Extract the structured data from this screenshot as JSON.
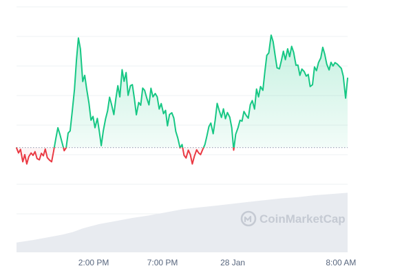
{
  "chart_data": {
    "type": "line",
    "title": "",
    "xlabel": "",
    "ylabel": "",
    "x_tick_labels": [
      "2:00 PM",
      "7:00 PM",
      "28 Jan",
      "8:00 AM"
    ],
    "x_range": [
      0,
      100
    ],
    "x_tick_positions": [
      23.3,
      44.1,
      65.3,
      98.0
    ],
    "ylim": [
      0,
      100
    ],
    "grid": "horizontal",
    "legend": "none",
    "baseline_value": 31.4,
    "colors": {
      "up": "#16c784",
      "down": "#ea3943",
      "up_fill": "#16c784",
      "down_fill": "#ea3943",
      "baseline": "#a1a7bb",
      "volume": "#e8ebf0",
      "grid": "#eef0f3"
    },
    "series": [
      {
        "values": [
          [
            0,
            31.2
          ],
          [
            0.6,
            28.5
          ],
          [
            1.2,
            30.4
          ],
          [
            1.9,
            23.8
          ],
          [
            2.5,
            27.6
          ],
          [
            3.1,
            22.6
          ],
          [
            3.7,
            26.5
          ],
          [
            4.4,
            28.5
          ],
          [
            5.0,
            27.2
          ],
          [
            5.6,
            29.2
          ],
          [
            6.2,
            25.5
          ],
          [
            6.9,
            24.8
          ],
          [
            7.5,
            28.3
          ],
          [
            8.1,
            27.0
          ],
          [
            8.7,
            30.6
          ],
          [
            9.3,
            26.0
          ],
          [
            10.0,
            24.6
          ],
          [
            10.6,
            23.8
          ],
          [
            11.2,
            29.4
          ],
          [
            11.9,
            36.4
          ],
          [
            12.5,
            42.0
          ],
          [
            13.1,
            38.5
          ],
          [
            13.7,
            34.4
          ],
          [
            14.4,
            29.7
          ],
          [
            15.0,
            31.3
          ],
          [
            15.6,
            39.2
          ],
          [
            16.2,
            40.3
          ],
          [
            16.9,
            52.0
          ],
          [
            17.5,
            62.5
          ],
          [
            18.1,
            78.3
          ],
          [
            18.7,
            90.0
          ],
          [
            19.3,
            84.2
          ],
          [
            20.0,
            66.7
          ],
          [
            20.6,
            70.0
          ],
          [
            21.2,
            62.5
          ],
          [
            21.9,
            55.0
          ],
          [
            22.5,
            46.0
          ],
          [
            23.1,
            48.0
          ],
          [
            23.7,
            42.0
          ],
          [
            24.4,
            47.0
          ],
          [
            25.0,
            40.0
          ],
          [
            25.6,
            32.4
          ],
          [
            26.2,
            40.2
          ],
          [
            26.9,
            46.8
          ],
          [
            27.5,
            51.0
          ],
          [
            28.1,
            58.3
          ],
          [
            28.7,
            54.5
          ],
          [
            29.4,
            49.0
          ],
          [
            30.0,
            57.5
          ],
          [
            30.6,
            64.5
          ],
          [
            31.2,
            58.5
          ],
          [
            31.9,
            73.0
          ],
          [
            32.5,
            66.8
          ],
          [
            33.1,
            71.5
          ],
          [
            33.7,
            59.3
          ],
          [
            34.4,
            64.5
          ],
          [
            35.0,
            65.0
          ],
          [
            35.6,
            57.6
          ],
          [
            36.2,
            48.9
          ],
          [
            36.9,
            55.5
          ],
          [
            37.5,
            54.0
          ],
          [
            38.1,
            63.2
          ],
          [
            38.7,
            62.0
          ],
          [
            39.4,
            57.5
          ],
          [
            40.0,
            54.2
          ],
          [
            40.6,
            63.1
          ],
          [
            41.2,
            58.5
          ],
          [
            41.9,
            60.3
          ],
          [
            42.5,
            58.5
          ],
          [
            43.1,
            52.0
          ],
          [
            43.7,
            54.9
          ],
          [
            44.4,
            49.5
          ],
          [
            45.0,
            51.3
          ],
          [
            45.6,
            43.0
          ],
          [
            46.2,
            49.0
          ],
          [
            46.9,
            50.0
          ],
          [
            47.5,
            47.2
          ],
          [
            48.1,
            40.0
          ],
          [
            48.7,
            36.6
          ],
          [
            49.4,
            31.2
          ],
          [
            50.0,
            33.0
          ],
          [
            50.6,
            27.2
          ],
          [
            51.2,
            25.8
          ],
          [
            51.9,
            30.0
          ],
          [
            52.5,
            27.6
          ],
          [
            53.1,
            22.6
          ],
          [
            53.7,
            26.6
          ],
          [
            54.4,
            30.2
          ],
          [
            55.0,
            28.5
          ],
          [
            55.6,
            27.6
          ],
          [
            56.2,
            30.2
          ],
          [
            56.9,
            33.0
          ],
          [
            57.5,
            37.6
          ],
          [
            58.1,
            42.6
          ],
          [
            58.7,
            44.5
          ],
          [
            59.4,
            38.8
          ],
          [
            60.0,
            46.0
          ],
          [
            60.6,
            55.0
          ],
          [
            61.2,
            51.3
          ],
          [
            61.9,
            47.5
          ],
          [
            62.5,
            52.1
          ],
          [
            63.1,
            46.8
          ],
          [
            63.7,
            50.1
          ],
          [
            64.4,
            47.6
          ],
          [
            65.0,
            42.0
          ],
          [
            65.6,
            30.0
          ],
          [
            66.2,
            38.5
          ],
          [
            66.9,
            42.0
          ],
          [
            67.5,
            46.0
          ],
          [
            68.1,
            45.5
          ],
          [
            68.7,
            50.7
          ],
          [
            69.4,
            48.5
          ],
          [
            70.0,
            47.1
          ],
          [
            70.6,
            54.3
          ],
          [
            71.2,
            56.5
          ],
          [
            71.9,
            52.0
          ],
          [
            72.5,
            62.7
          ],
          [
            73.1,
            58.5
          ],
          [
            73.7,
            64.0
          ],
          [
            74.4,
            62.0
          ],
          [
            75.0,
            72.0
          ],
          [
            75.6,
            80.7
          ],
          [
            76.2,
            82.0
          ],
          [
            76.9,
            91.5
          ],
          [
            77.5,
            88.0
          ],
          [
            78.1,
            80.7
          ],
          [
            78.7,
            74.0
          ],
          [
            79.4,
            73.5
          ],
          [
            80.0,
            77.9
          ],
          [
            80.6,
            82.9
          ],
          [
            81.2,
            78.4
          ],
          [
            81.9,
            84.2
          ],
          [
            82.5,
            80.0
          ],
          [
            83.1,
            85.5
          ],
          [
            83.7,
            82.3
          ],
          [
            84.4,
            75.4
          ],
          [
            85.0,
            75.5
          ],
          [
            85.6,
            70.0
          ],
          [
            86.2,
            73.4
          ],
          [
            86.9,
            72.0
          ],
          [
            87.5,
            69.6
          ],
          [
            88.1,
            70.5
          ],
          [
            88.7,
            64.0
          ],
          [
            89.4,
            65.0
          ],
          [
            90.0,
            74.5
          ],
          [
            90.6,
            72.5
          ],
          [
            91.2,
            76.8
          ],
          [
            91.9,
            79.3
          ],
          [
            92.5,
            85.0
          ],
          [
            93.1,
            81.3
          ],
          [
            93.7,
            76.0
          ],
          [
            94.4,
            72.9
          ],
          [
            95.0,
            77.0
          ],
          [
            95.6,
            75.0
          ],
          [
            96.2,
            76.8
          ],
          [
            96.9,
            76.0
          ],
          [
            97.5,
            74.8
          ],
          [
            98.1,
            73.7
          ],
          [
            98.7,
            69.6
          ],
          [
            99.4,
            57.8
          ],
          [
            100,
            68.5
          ]
        ]
      }
    ],
    "volume": {
      "values": [
        [
          0,
          1.6
        ],
        [
          5,
          2.0
        ],
        [
          10,
          2.5
        ],
        [
          14,
          2.9
        ],
        [
          17,
          3.3
        ],
        [
          20,
          3.9
        ],
        [
          25,
          4.6
        ],
        [
          30,
          5.1
        ],
        [
          35,
          5.6
        ],
        [
          40,
          6.0
        ],
        [
          45,
          6.5
        ],
        [
          50,
          7.0
        ],
        [
          55,
          7.3
        ],
        [
          60,
          7.6
        ],
        [
          65,
          7.9
        ],
        [
          70,
          8.2
        ],
        [
          75,
          8.5
        ],
        [
          80,
          8.8
        ],
        [
          85,
          9.0
        ],
        [
          90,
          9.3
        ],
        [
          95,
          9.5
        ],
        [
          100,
          9.7
        ]
      ],
      "scale_max": 40
    },
    "watermark": "CoinMarketCap"
  }
}
